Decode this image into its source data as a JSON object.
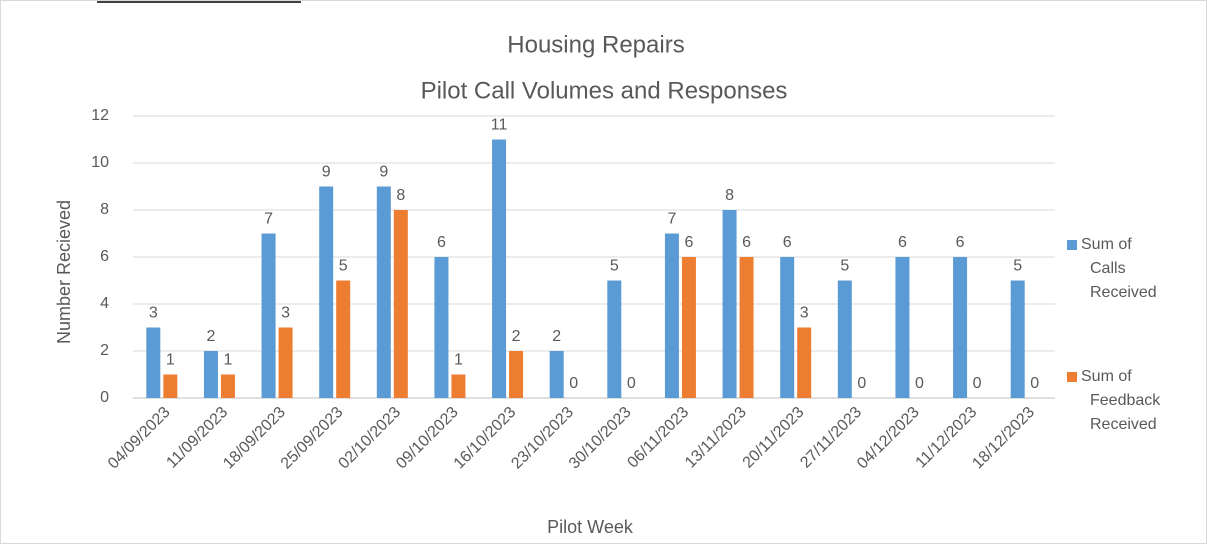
{
  "chart_data": {
    "type": "bar",
    "title": "Housing Repairs",
    "subtitle": "Pilot Call Volumes and Responses",
    "x_label": "Pilot Week",
    "y_label": "Number Recieved",
    "categories": [
      "04/09/2023",
      "11/09/2023",
      "18/09/2023",
      "25/09/2023",
      "02/10/2023",
      "09/10/2023",
      "16/10/2023",
      "23/10/2023",
      "30/10/2023",
      "06/11/2023",
      "13/11/2023",
      "20/11/2023",
      "27/11/2023",
      "04/12/2023",
      "11/12/2023",
      "18/12/2023"
    ],
    "series": [
      {
        "name": "Sum of Calls Received",
        "color": "#5b9bd5",
        "values": [
          3,
          2,
          7,
          9,
          9,
          6,
          11,
          2,
          5,
          7,
          8,
          6,
          5,
          6,
          6,
          5
        ]
      },
      {
        "name": "Sum of Feedback Received",
        "color": "#ed7d31",
        "values": [
          1,
          1,
          3,
          5,
          8,
          1,
          2,
          0,
          0,
          6,
          6,
          3,
          0,
          0,
          0,
          0
        ]
      }
    ],
    "ylim": [
      0,
      12
    ],
    "yticks": [
      0,
      2,
      4,
      6,
      8,
      10,
      12
    ],
    "grid": true,
    "legend": "right"
  }
}
